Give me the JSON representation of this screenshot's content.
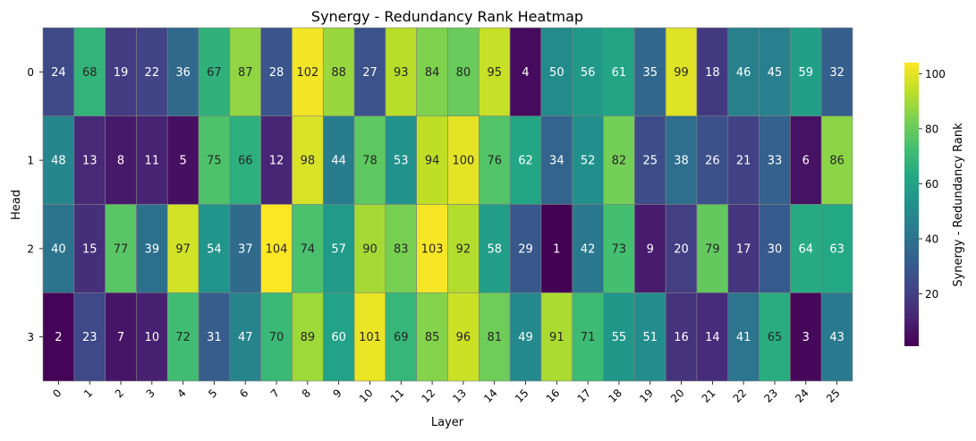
{
  "chart_data": {
    "type": "heatmap",
    "title": "Synergy - Redundancy Rank Heatmap",
    "xlabel": "Layer",
    "ylabel": "Head",
    "x": [
      "0",
      "1",
      "2",
      "3",
      "4",
      "5",
      "6",
      "7",
      "8",
      "9",
      "10",
      "11",
      "12",
      "13",
      "14",
      "15",
      "16",
      "17",
      "18",
      "19",
      "20",
      "21",
      "22",
      "23",
      "24",
      "25"
    ],
    "y": [
      "0",
      "1",
      "2",
      "3"
    ],
    "values": [
      [
        24,
        68,
        19,
        22,
        36,
        67,
        87,
        28,
        102,
        88,
        27,
        93,
        84,
        80,
        95,
        4,
        50,
        56,
        61,
        35,
        99,
        18,
        46,
        45,
        59,
        32
      ],
      [
        48,
        13,
        8,
        11,
        5,
        75,
        66,
        12,
        98,
        44,
        78,
        53,
        94,
        100,
        76,
        62,
        34,
        52,
        82,
        25,
        38,
        26,
        21,
        33,
        6,
        86
      ],
      [
        40,
        15,
        77,
        39,
        97,
        54,
        37,
        104,
        74,
        57,
        90,
        83,
        103,
        92,
        58,
        29,
        1,
        42,
        73,
        9,
        20,
        79,
        17,
        30,
        64,
        63
      ],
      [
        2,
        23,
        7,
        10,
        72,
        31,
        47,
        70,
        89,
        60,
        101,
        69,
        85,
        96,
        81,
        49,
        91,
        71,
        55,
        51,
        16,
        14,
        41,
        65,
        3,
        43
      ]
    ],
    "value_range": [
      1,
      104
    ],
    "colormap": "viridis",
    "cell_border_color": "#808080",
    "colorbar": {
      "label": "Synergy - Redundancy Rank",
      "ticks": [
        20,
        40,
        60,
        80,
        100
      ],
      "placement": "right"
    }
  }
}
